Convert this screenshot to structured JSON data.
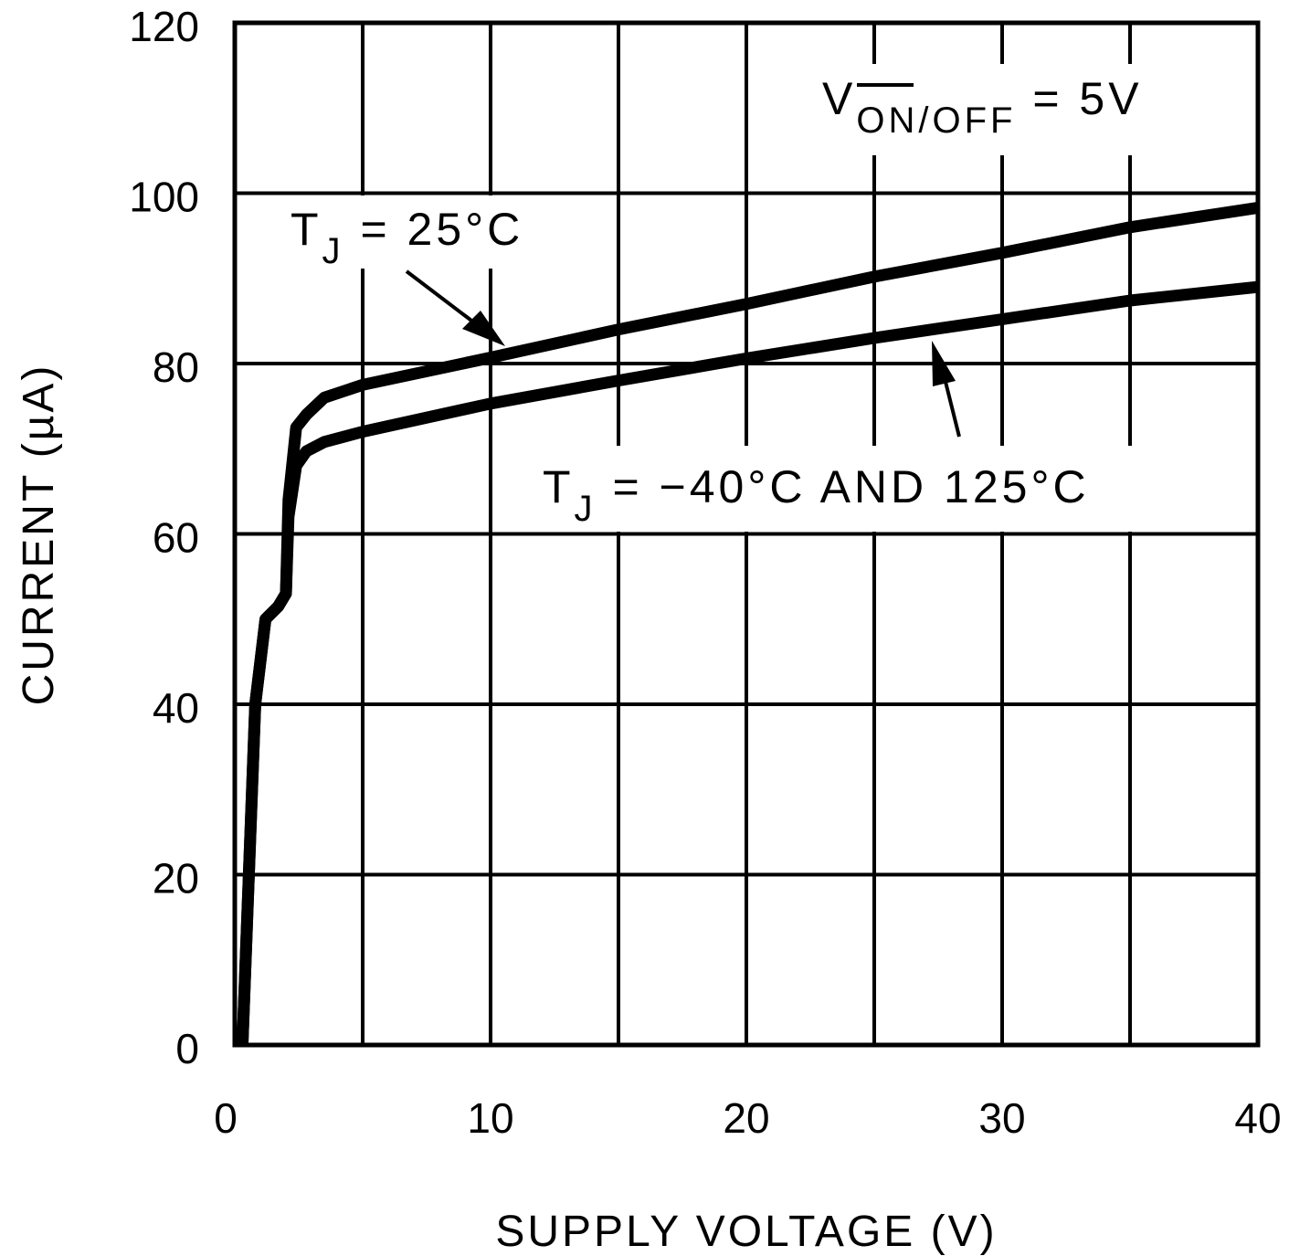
{
  "chart_data": {
    "type": "line",
    "title": "",
    "xlabel": "SUPPLY VOLTAGE (V)",
    "ylabel": "CURRENT (µA)",
    "xlim": [
      0,
      40
    ],
    "ylim": [
      0,
      120
    ],
    "xticks": [
      0,
      10,
      20,
      30,
      40
    ],
    "yticks": [
      0,
      20,
      40,
      60,
      80,
      100,
      120
    ],
    "grid": true,
    "grid_x_step": 5,
    "grid_y_step": 20,
    "legend": "none (inline annotations with arrows)",
    "series": [
      {
        "name": "TJ = 25°C",
        "x": [
          0.3,
          0.8,
          1.2,
          1.7,
          2.0,
          2.1,
          2.4,
          2.8,
          3.5,
          5,
          10,
          15,
          20,
          25,
          30,
          35,
          40
        ],
        "y": [
          0,
          40,
          50,
          51.5,
          53,
          64,
          72.5,
          74,
          76,
          77.5,
          80.7,
          84,
          87,
          90.2,
          93,
          96,
          98.3
        ]
      },
      {
        "name": "TJ = -40°C AND 125°C",
        "x": [
          0.3,
          0.8,
          1.2,
          1.7,
          2.0,
          2.1,
          2.4,
          2.8,
          3.5,
          5,
          10,
          15,
          20,
          25,
          30,
          35,
          40
        ],
        "y": [
          0,
          40,
          50,
          51.5,
          53,
          62,
          68,
          69.7,
          70.8,
          72,
          75.3,
          78,
          80.6,
          83,
          85.2,
          87.4,
          89
        ]
      }
    ],
    "annotations": [
      {
        "text": "V_(ON/OFF overbar) = 5V",
        "main": "V",
        "sub_overbar": "ON",
        "sub_rest": "/OFF",
        "tail": " = 5V"
      },
      {
        "text": "TJ = 25°C",
        "main": "T",
        "sub": "J",
        "tail": " = 25°C",
        "arrow_to": [
          10,
          80.7
        ]
      },
      {
        "text": "TJ = -40°C AND 125°C",
        "main": "T",
        "sub": "J",
        "tail": " = −40°C AND 125°C",
        "arrow_to": [
          27,
          83.5
        ]
      }
    ]
  },
  "labels": {
    "xlabel": "SUPPLY VOLTAGE (V)",
    "ylabel": "CURRENT (µA)",
    "xticks": [
      "0",
      "10",
      "20",
      "30",
      "40"
    ],
    "yticks": [
      "0",
      "20",
      "40",
      "60",
      "80",
      "100",
      "120"
    ],
    "cond_main": "V",
    "cond_sub_bar": "ON",
    "cond_sub_rest": "/OFF",
    "cond_tail": " = 5V",
    "t25_main": "T",
    "t25_sub": "J",
    "t25_tail": " = 25°C",
    "tx_main": "T",
    "tx_sub": "J",
    "tx_tail": " = −40°C AND 125°C"
  },
  "colors": {
    "line": "#000000",
    "grid": "#000000",
    "background": "#ffffff"
  }
}
